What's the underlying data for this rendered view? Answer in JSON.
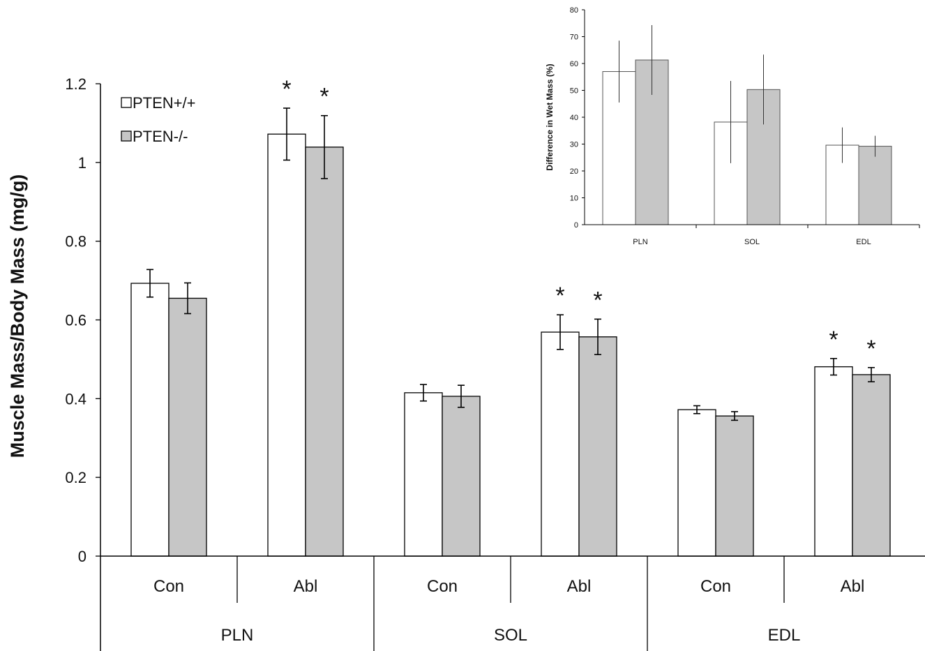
{
  "chart_data": [
    {
      "type": "bar",
      "ylabel": "Muscle Mass/Body Mass (mg/g)",
      "ylim": [
        0,
        1.2
      ],
      "yticks": [
        "0",
        "0.2",
        "0.4",
        "0.6",
        "0.8",
        "1",
        "1.2"
      ],
      "groups": [
        "PLN",
        "SOL",
        "EDL"
      ],
      "conditions": [
        "Con",
        "Abl"
      ],
      "categories": [
        "Con",
        "Abl",
        "Con",
        "Abl",
        "Con",
        "Abl"
      ],
      "legend_position": "top-left",
      "grid": false,
      "colors": {
        "PTEN+/+": "#ffffff",
        "PTEN-/-": "#c6c6c6"
      },
      "significance_marker": "*",
      "series": [
        {
          "name": "PTEN+/+",
          "values": [
            0.693,
            1.072,
            0.415,
            0.569,
            0.372,
            0.481
          ],
          "errors": [
            0.035,
            0.066,
            0.021,
            0.044,
            0.01,
            0.021
          ],
          "significant": [
            false,
            true,
            false,
            true,
            false,
            true
          ]
        },
        {
          "name": "PTEN-/-",
          "values": [
            0.655,
            1.039,
            0.406,
            0.557,
            0.356,
            0.461
          ],
          "errors": [
            0.039,
            0.08,
            0.028,
            0.045,
            0.011,
            0.018
          ],
          "significant": [
            false,
            true,
            false,
            true,
            false,
            true
          ]
        }
      ]
    },
    {
      "type": "bar",
      "ylabel": "Difference in Wet Mass (%)",
      "ylim": [
        0,
        80
      ],
      "yticks": [
        "0",
        "10",
        "20",
        "30",
        "40",
        "50",
        "60",
        "70",
        "80"
      ],
      "categories": [
        "PLN",
        "SOL",
        "EDL"
      ],
      "grid": false,
      "series": [
        {
          "name": "PTEN+/+",
          "values": [
            57,
            38.2,
            29.6
          ],
          "errors": [
            11.5,
            15.3,
            6.6
          ]
        },
        {
          "name": "PTEN-/-",
          "values": [
            61.3,
            50.3,
            29.2
          ],
          "errors": [
            13,
            13,
            3.9
          ]
        }
      ]
    }
  ]
}
